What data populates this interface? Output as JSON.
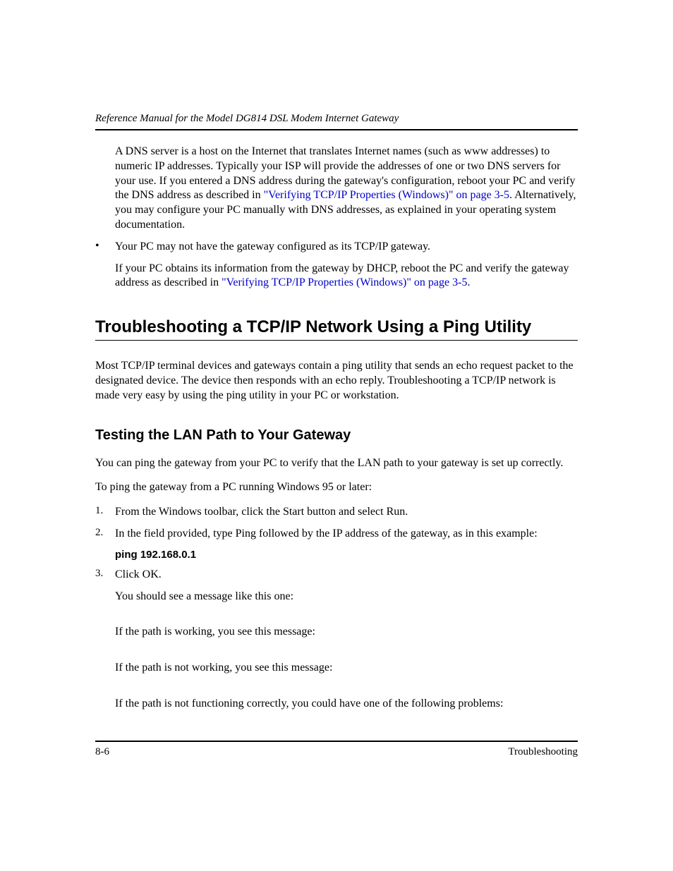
{
  "header": {
    "running_title": "Reference Manual for the Model DG814 DSL Modem Internet Gateway"
  },
  "intro": {
    "dns_para_before_link": "A DNS server is a host on the Internet that translates Internet names (such as www addresses) to numeric IP addresses. Typically your ISP will provide the addresses of one or two DNS servers for your use. If you entered a DNS address during the gateway's configuration, reboot your PC and verify the DNS address as described in ",
    "dns_link_text": "\"Verifying TCP/IP Properties (Windows)\" on page 3-5",
    "dns_para_after_link": ". Alternatively, you may configure your PC manually with DNS addresses, as explained in your operating system documentation.",
    "bullet_text": "Your PC may not have the gateway configured as its TCP/IP gateway.",
    "bullet_follow_before_link": "If your PC obtains its information from the gateway by DHCP, reboot the PC and verify the gateway address as described in ",
    "bullet_follow_link": "\"Verifying TCP/IP Properties (Windows)\" on page 3-5",
    "bullet_follow_after_link": "."
  },
  "section": {
    "h1": "Troubleshooting a TCP/IP Network Using a Ping Utility",
    "intro_para": "Most TCP/IP terminal devices and gateways contain a ping utility that sends an echo request packet to the designated device. The device then responds with an echo reply. Troubleshooting a TCP/IP network is made very easy by using the ping utility in your PC or workstation.",
    "h2": "Testing the LAN Path to Your Gateway",
    "p1": "You can ping the gateway from your PC to verify that the LAN path to your gateway is set up correctly.",
    "p2": "To ping the gateway from a PC running Windows 95 or later:",
    "steps": {
      "s1_num": "1.",
      "s1": "From the Windows toolbar, click the Start button and select Run.",
      "s2_num": "2.",
      "s2": "In the field provided, type Ping followed by the IP address of the gateway, as in this example:",
      "s2_cmd": "ping 192.168.0.1",
      "s3_num": "3.",
      "s3": "Click OK.",
      "s3_f1": "You should see a message like this one:",
      "s3_f2": "If the path is working, you see this message:",
      "s3_f3": "If the path is not working, you see this message:",
      "s3_f4": "If the path is not functioning correctly, you could have one of the following problems:"
    }
  },
  "footer": {
    "page_num": "8-6",
    "section_name": "Troubleshooting"
  },
  "colors": {
    "link_color": "#0000cc",
    "text_color": "#000000",
    "background": "#ffffff"
  }
}
